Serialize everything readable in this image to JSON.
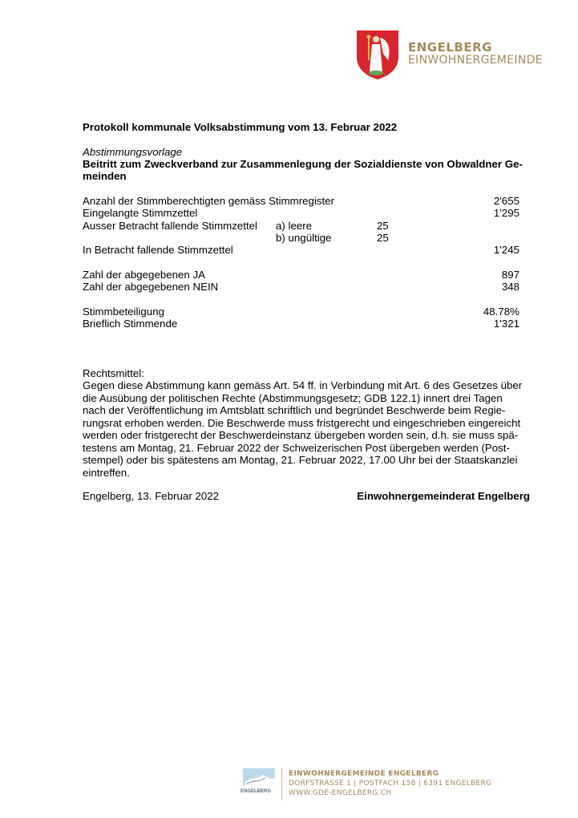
{
  "header": {
    "logo_line1": "ENGELBERG",
    "logo_line2": "EINWOHNERGEMEINDE",
    "accent": "#a48a5a",
    "shield_color": "#d8262e"
  },
  "title": "Protokoll kommunale Volksabstimmung vom 13. Februar 2022",
  "vorlage_label": "Abstimmungsvorlage",
  "vorlage_title_lines": [
    "Beitritt zum Zweckverband zur Zusammenlegung der Sozialdienste von Obwaldner Ge-",
    "meinden"
  ],
  "results": {
    "stimmberechtigte": {
      "label": "Anzahl der Stimmberechtigten gemäss Stimmregister",
      "value": "2'655"
    },
    "eingelangt": {
      "label": "Eingelangte Stimmzettel",
      "value": "1'295"
    },
    "ausser": {
      "label": "Ausser Betracht fallende Stimmzettel",
      "a_label": "a) leere",
      "a_value": "25",
      "b_label": "b) ungültige",
      "b_value": "25"
    },
    "in_betracht": {
      "label": "In Betracht fallende Stimmzettel",
      "value": "1'245"
    },
    "ja": {
      "label": "Zahl der abgegebenen JA",
      "value": "897"
    },
    "nein": {
      "label": "Zahl der abgegebenen NEIN",
      "value": "348"
    },
    "beteiligung": {
      "label": "Stimmbeteiligung",
      "value": "48.78%"
    },
    "brieflich": {
      "label": "Brieflich Stimmende",
      "value": "1'321"
    }
  },
  "rechtsmittel": {
    "label": "Rechtsmittel:",
    "lines": [
      "Gegen diese Abstimmung kann gemäss Art. 54 ff. in Verbindung mit Art. 6 des Gesetzes über",
      "die Ausübung der politischen Rechte (Abstimmungsgesetz; GDB 122.1) innert drei Tagen",
      "nach der Veröffentlichung im Amtsblatt schriftlich und begründet Beschwerde beim Regie-",
      "rungsrat erhoben werden. Die Beschwerde muss fristgerecht und eingeschrieben eingereicht",
      "werden oder fristgerecht der Beschwerdeinstanz übergeben worden sein, d.h. sie muss spä-",
      "testens am Montag, 21. Februar 2022 der Schweizerischen Post übergeben werden (Post-",
      "stempel) oder bis spätestens am Montag, 21. Februar 2022, 17.00 Uhr bei der Staatskanzlei",
      "eintreffen."
    ]
  },
  "place_date": "Engelberg, 13. Februar 2022",
  "signature": "Einwohnergemeinderat Engelberg",
  "footer": {
    "small_logo_text": "ENGELBERG",
    "line1": "EINWOHNERGEMEINDE ENGELBERG",
    "line2": "DORFSTRASSE 1 | POSTFACH 158 | 6391 ENGELBERG",
    "line3": "WWW.GDE-ENGELBERG.CH"
  }
}
